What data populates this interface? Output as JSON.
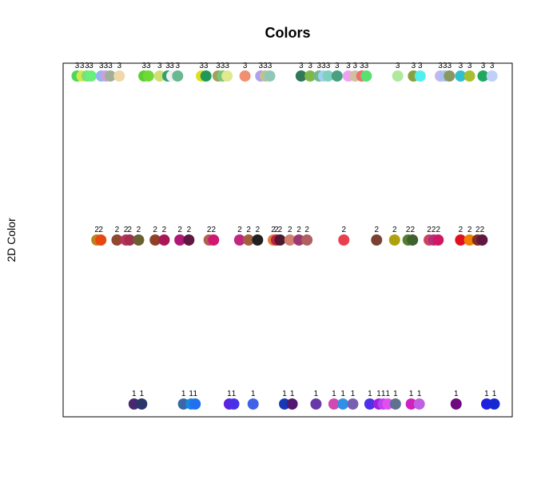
{
  "chart_data": {
    "type": "scatter",
    "title": "Colors",
    "xlabel": "",
    "ylabel": "2D Color",
    "xlim": [
      0,
      100
    ],
    "ylim": [
      0.5,
      3.5
    ],
    "grid": false,
    "legend": "none",
    "series": [
      {
        "y": 3,
        "points": [
          {
            "x": 3.1,
            "color": "#4fd65a"
          },
          {
            "x": 4.2,
            "color": "#d8e84a"
          },
          {
            "x": 5.3,
            "color": "#7be07b"
          },
          {
            "x": 6.2,
            "color": "#68f07a"
          },
          {
            "x": 8.5,
            "color": "#8fb8f0"
          },
          {
            "x": 9.5,
            "color": "#c8a0e0"
          },
          {
            "x": 10.5,
            "color": "#a0b098"
          },
          {
            "x": 12.5,
            "color": "#f0d8a8"
          },
          {
            "x": 18.0,
            "color": "#58d030"
          },
          {
            "x": 19.0,
            "color": "#70d838"
          },
          {
            "x": 21.5,
            "color": "#d0e070"
          },
          {
            "x": 23.3,
            "color": "#30a070"
          },
          {
            "x": 24.2,
            "color": "#f0f0f0"
          },
          {
            "x": 25.5,
            "color": "#68b890"
          },
          {
            "x": 30.8,
            "color": "#e0e020"
          },
          {
            "x": 31.8,
            "color": "#209858"
          },
          {
            "x": 34.5,
            "color": "#a0a060"
          },
          {
            "x": 35.5,
            "color": "#78c878"
          },
          {
            "x": 36.5,
            "color": "#e0e890"
          },
          {
            "x": 40.5,
            "color": "#f09070"
          },
          {
            "x": 44.0,
            "color": "#b0a0f0"
          },
          {
            "x": 45.0,
            "color": "#c0c090"
          },
          {
            "x": 46.0,
            "color": "#90c8b8"
          },
          {
            "x": 53.0,
            "color": "#307858"
          },
          {
            "x": 55.0,
            "color": "#80b848"
          },
          {
            "x": 57.0,
            "color": "#70b890"
          },
          {
            "x": 58.0,
            "color": "#a0d0f0"
          },
          {
            "x": 59.0,
            "color": "#80d0c0"
          },
          {
            "x": 61.0,
            "color": "#48a080"
          },
          {
            "x": 63.5,
            "color": "#f0a0f0"
          },
          {
            "x": 65.0,
            "color": "#d0c0a0"
          },
          {
            "x": 66.5,
            "color": "#f07070"
          },
          {
            "x": 67.5,
            "color": "#58e070"
          },
          {
            "x": 74.5,
            "color": "#b0e8a0"
          },
          {
            "x": 78.0,
            "color": "#88a040"
          },
          {
            "x": 79.5,
            "color": "#50f0f0"
          },
          {
            "x": 84.0,
            "color": "#c0b8f0"
          },
          {
            "x": 85.0,
            "color": "#a8c0f0"
          },
          {
            "x": 86.0,
            "color": "#889860"
          },
          {
            "x": 88.5,
            "color": "#30c0d0"
          },
          {
            "x": 90.5,
            "color": "#a8c030"
          },
          {
            "x": 93.5,
            "color": "#20a860"
          },
          {
            "x": 95.5,
            "color": "#c0d0f8"
          }
        ]
      },
      {
        "y": 2,
        "points": [
          {
            "x": 7.5,
            "color": "#c08020"
          },
          {
            "x": 8.4,
            "color": "#e84810"
          },
          {
            "x": 12.0,
            "color": "#904830"
          },
          {
            "x": 14.0,
            "color": "#c03060"
          },
          {
            "x": 14.8,
            "color": "#a03050"
          },
          {
            "x": 16.8,
            "color": "#686030"
          },
          {
            "x": 20.5,
            "color": "#904028"
          },
          {
            "x": 22.5,
            "color": "#a81858"
          },
          {
            "x": 26.0,
            "color": "#b01878"
          },
          {
            "x": 28.0,
            "color": "#601840"
          },
          {
            "x": 32.5,
            "color": "#b06050"
          },
          {
            "x": 33.5,
            "color": "#d01870"
          },
          {
            "x": 39.3,
            "color": "#c02880"
          },
          {
            "x": 41.3,
            "color": "#a06040"
          },
          {
            "x": 43.3,
            "color": "#202020"
          },
          {
            "x": 46.8,
            "color": "#e08040"
          },
          {
            "x": 47.5,
            "color": "#c02040"
          },
          {
            "x": 48.3,
            "color": "#501830"
          },
          {
            "x": 50.5,
            "color": "#d08070"
          },
          {
            "x": 52.5,
            "color": "#a03870"
          },
          {
            "x": 54.3,
            "color": "#b06060"
          },
          {
            "x": 62.5,
            "color": "#e84050"
          },
          {
            "x": 69.8,
            "color": "#7a4030"
          },
          {
            "x": 73.8,
            "color": "#b0a010"
          },
          {
            "x": 76.8,
            "color": "#508030"
          },
          {
            "x": 77.8,
            "color": "#406030"
          },
          {
            "x": 81.5,
            "color": "#d04060"
          },
          {
            "x": 82.5,
            "color": "#b03080"
          },
          {
            "x": 83.5,
            "color": "#d01860"
          },
          {
            "x": 88.5,
            "color": "#e01020"
          },
          {
            "x": 90.5,
            "color": "#f08000"
          },
          {
            "x": 92.3,
            "color": "#803020"
          },
          {
            "x": 93.3,
            "color": "#601840"
          }
        ]
      },
      {
        "y": 1,
        "points": [
          {
            "x": 15.8,
            "color": "#482870"
          },
          {
            "x": 17.5,
            "color": "#283868"
          },
          {
            "x": 26.8,
            "color": "#3868a8"
          },
          {
            "x": 28.5,
            "color": "#1888e0"
          },
          {
            "x": 29.4,
            "color": "#2070f0"
          },
          {
            "x": 37.0,
            "color": "#6020e0"
          },
          {
            "x": 38.0,
            "color": "#4830e8"
          },
          {
            "x": 42.3,
            "color": "#4060e8"
          },
          {
            "x": 49.3,
            "color": "#1838b8"
          },
          {
            "x": 51.0,
            "color": "#501870"
          },
          {
            "x": 56.3,
            "color": "#6838a8"
          },
          {
            "x": 60.3,
            "color": "#d048b0"
          },
          {
            "x": 62.3,
            "color": "#3090e8"
          },
          {
            "x": 64.5,
            "color": "#7860b0"
          },
          {
            "x": 68.3,
            "color": "#5030e8"
          },
          {
            "x": 70.3,
            "color": "#a020e0"
          },
          {
            "x": 71.3,
            "color": "#c040f0"
          },
          {
            "x": 72.3,
            "color": "#e050f0"
          },
          {
            "x": 74.0,
            "color": "#607090"
          },
          {
            "x": 77.5,
            "color": "#d020c0"
          },
          {
            "x": 79.3,
            "color": "#c060e0"
          },
          {
            "x": 87.5,
            "color": "#700880"
          },
          {
            "x": 94.3,
            "color": "#2020e0"
          },
          {
            "x": 96.0,
            "color": "#1828d0"
          }
        ]
      }
    ]
  }
}
